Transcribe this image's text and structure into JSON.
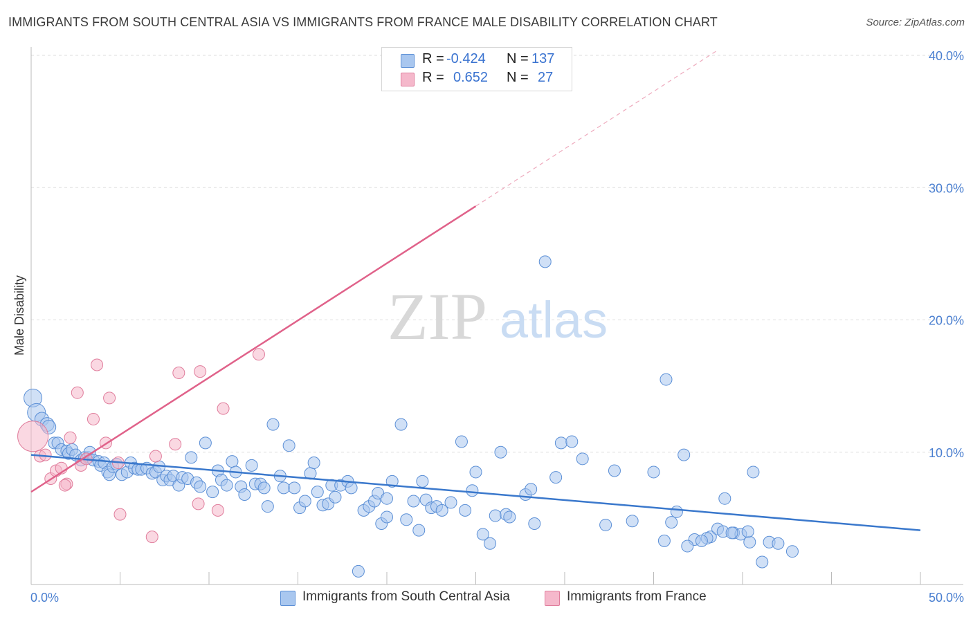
{
  "title": "IMMIGRANTS FROM SOUTH CENTRAL ASIA VS IMMIGRANTS FROM FRANCE MALE DISABILITY CORRELATION CHART",
  "source": "Source: ZipAtlas.com",
  "watermark": {
    "zip": "ZIP",
    "atlas": "atlas"
  },
  "legend": {
    "rows": [
      {
        "r_label": "R =",
        "r_value": "-0.424",
        "n_label": "N =",
        "n_value": "137"
      },
      {
        "r_label": "R =",
        "r_value": "0.652",
        "n_label": "N =",
        "n_value": "27"
      }
    ]
  },
  "bottom_legend": {
    "series_a": "Immigrants from South Central Asia",
    "series_b": "Immigrants from France"
  },
  "colors": {
    "blue_fill": "#a9c7ef",
    "blue_stroke": "#5b8fd6",
    "blue_line": "#3a78cc",
    "pink_fill": "#f5b8cb",
    "pink_stroke": "#e07d9c",
    "pink_line": "#e0628a",
    "tick_text": "#4a7fd0",
    "grid": "#dddddd"
  },
  "chart_data": {
    "type": "scatter",
    "title": "IMMIGRANTS FROM SOUTH CENTRAL ASIA VS IMMIGRANTS FROM FRANCE MALE DISABILITY CORRELATION CHART",
    "xlabel": "",
    "ylabel": "Male Disability",
    "xlim": [
      0,
      50
    ],
    "ylim": [
      0,
      40
    ],
    "x_tick_labels": [
      "0.0%",
      "50.0%"
    ],
    "y_ticks": [
      10,
      20,
      30,
      40
    ],
    "y_tick_labels": [
      "10.0%",
      "20.0%",
      "30.0%",
      "40.0%"
    ],
    "grid": "horizontal dashed",
    "legend_position": "top-center",
    "series": [
      {
        "name": "Immigrants from South Central Asia",
        "color": "#a9c7ef",
        "points": [
          [
            0.1,
            14.1
          ],
          [
            0.3,
            13.0
          ],
          [
            0.6,
            12.5
          ],
          [
            0.9,
            12.1
          ],
          [
            1.0,
            11.9
          ],
          [
            1.3,
            10.7
          ],
          [
            1.5,
            10.7
          ],
          [
            1.7,
            10.2
          ],
          [
            2.0,
            10.1
          ],
          [
            2.1,
            9.9
          ],
          [
            2.3,
            10.2
          ],
          [
            2.5,
            9.8
          ],
          [
            2.8,
            9.4
          ],
          [
            3.0,
            9.6
          ],
          [
            3.2,
            9.6
          ],
          [
            3.3,
            10.0
          ],
          [
            3.5,
            9.4
          ],
          [
            3.8,
            9.3
          ],
          [
            3.9,
            9.0
          ],
          [
            4.1,
            9.2
          ],
          [
            4.3,
            8.5
          ],
          [
            4.4,
            8.3
          ],
          [
            4.6,
            8.9
          ],
          [
            4.8,
            9.1
          ],
          [
            5.1,
            8.3
          ],
          [
            5.4,
            8.5
          ],
          [
            5.6,
            9.2
          ],
          [
            5.8,
            8.8
          ],
          [
            6.0,
            8.7
          ],
          [
            6.2,
            8.7
          ],
          [
            6.5,
            8.8
          ],
          [
            6.8,
            8.4
          ],
          [
            7.0,
            8.5
          ],
          [
            7.2,
            8.9
          ],
          [
            7.4,
            7.9
          ],
          [
            7.6,
            8.2
          ],
          [
            7.8,
            7.9
          ],
          [
            8.0,
            8.2
          ],
          [
            8.3,
            7.5
          ],
          [
            8.5,
            8.1
          ],
          [
            8.8,
            8.0
          ],
          [
            9.0,
            9.6
          ],
          [
            9.3,
            7.7
          ],
          [
            9.5,
            7.4
          ],
          [
            9.8,
            10.7
          ],
          [
            10.2,
            7.0
          ],
          [
            10.5,
            8.6
          ],
          [
            10.7,
            7.9
          ],
          [
            11.0,
            7.5
          ],
          [
            11.3,
            9.3
          ],
          [
            11.5,
            8.5
          ],
          [
            11.8,
            7.4
          ],
          [
            12.0,
            6.8
          ],
          [
            12.4,
            9.0
          ],
          [
            12.6,
            7.6
          ],
          [
            12.9,
            7.6
          ],
          [
            13.1,
            7.3
          ],
          [
            13.3,
            5.9
          ],
          [
            13.6,
            12.1
          ],
          [
            14.0,
            8.2
          ],
          [
            14.2,
            7.3
          ],
          [
            14.5,
            10.5
          ],
          [
            14.8,
            7.3
          ],
          [
            15.1,
            5.8
          ],
          [
            15.4,
            6.3
          ],
          [
            15.7,
            8.4
          ],
          [
            15.9,
            9.2
          ],
          [
            16.1,
            7.0
          ],
          [
            16.4,
            6.0
          ],
          [
            16.7,
            6.1
          ],
          [
            16.9,
            7.5
          ],
          [
            17.1,
            6.6
          ],
          [
            17.4,
            7.5
          ],
          [
            17.8,
            7.8
          ],
          [
            18.0,
            7.3
          ],
          [
            18.4,
            1.0
          ],
          [
            18.7,
            5.6
          ],
          [
            19.0,
            5.9
          ],
          [
            19.3,
            6.3
          ],
          [
            19.5,
            6.9
          ],
          [
            19.7,
            4.6
          ],
          [
            20.0,
            5.1
          ],
          [
            20.3,
            7.8
          ],
          [
            20.0,
            6.5
          ],
          [
            20.8,
            12.1
          ],
          [
            21.1,
            4.9
          ],
          [
            21.5,
            6.3
          ],
          [
            21.8,
            4.1
          ],
          [
            22.0,
            7.8
          ],
          [
            22.2,
            6.4
          ],
          [
            22.5,
            5.8
          ],
          [
            22.8,
            5.9
          ],
          [
            23.1,
            5.6
          ],
          [
            23.6,
            6.2
          ],
          [
            24.2,
            10.8
          ],
          [
            24.4,
            5.6
          ],
          [
            24.8,
            7.1
          ],
          [
            25.0,
            8.5
          ],
          [
            25.4,
            3.8
          ],
          [
            25.8,
            3.1
          ],
          [
            26.1,
            5.2
          ],
          [
            26.4,
            10.0
          ],
          [
            26.7,
            5.3
          ],
          [
            26.9,
            5.1
          ],
          [
            27.8,
            6.8
          ],
          [
            28.1,
            7.2
          ],
          [
            28.3,
            4.6
          ],
          [
            29.5,
            8.1
          ],
          [
            29.8,
            10.7
          ],
          [
            30.4,
            10.8
          ],
          [
            28.9,
            24.4
          ],
          [
            31.0,
            9.5
          ],
          [
            32.3,
            4.5
          ],
          [
            32.8,
            8.6
          ],
          [
            33.8,
            4.8
          ],
          [
            35.0,
            8.5
          ],
          [
            36.0,
            4.7
          ],
          [
            36.3,
            5.5
          ],
          [
            36.7,
            9.8
          ],
          [
            35.6,
            3.3
          ],
          [
            37.3,
            3.4
          ],
          [
            38.2,
            3.6
          ],
          [
            38.6,
            4.2
          ],
          [
            38.9,
            4.0
          ],
          [
            39.5,
            3.9
          ],
          [
            39.9,
            3.8
          ],
          [
            35.7,
            15.5
          ],
          [
            38.0,
            3.5
          ],
          [
            37.7,
            3.3
          ],
          [
            40.4,
            3.2
          ],
          [
            39.0,
            6.5
          ],
          [
            40.6,
            8.5
          ],
          [
            41.5,
            3.2
          ],
          [
            42.0,
            3.1
          ],
          [
            39.4,
            3.9
          ],
          [
            40.3,
            4.0
          ],
          [
            36.9,
            2.9
          ],
          [
            42.8,
            2.5
          ],
          [
            41.1,
            1.7
          ]
        ],
        "trend": {
          "x0": 0,
          "y0": 9.8,
          "x1": 50,
          "y1": 4.1
        }
      },
      {
        "name": "Immigrants from France",
        "color": "#f5b8cb",
        "points": [
          [
            0.1,
            11.2
          ],
          [
            0.5,
            9.7
          ],
          [
            0.8,
            9.8
          ],
          [
            1.1,
            8.0
          ],
          [
            1.4,
            8.6
          ],
          [
            1.7,
            8.8
          ],
          [
            2.0,
            7.6
          ],
          [
            2.2,
            11.1
          ],
          [
            2.6,
            14.5
          ],
          [
            2.8,
            9.0
          ],
          [
            3.1,
            9.5
          ],
          [
            3.5,
            12.5
          ],
          [
            3.7,
            16.6
          ],
          [
            4.2,
            10.7
          ],
          [
            4.4,
            14.1
          ],
          [
            4.9,
            9.2
          ],
          [
            5.0,
            5.3
          ],
          [
            6.8,
            3.6
          ],
          [
            7.0,
            9.7
          ],
          [
            8.1,
            10.6
          ],
          [
            8.3,
            16.0
          ],
          [
            9.4,
            6.1
          ],
          [
            9.5,
            16.1
          ],
          [
            10.5,
            5.6
          ],
          [
            10.8,
            13.3
          ],
          [
            12.8,
            17.4
          ],
          [
            1.9,
            7.5
          ]
        ],
        "trend": {
          "x0": 0,
          "y0": 7.0,
          "x1": 25,
          "y1": 28.6
        },
        "trend_extension": {
          "x0": 25,
          "y0": 28.6,
          "x1": 38.5,
          "y1": 40.3
        }
      }
    ]
  }
}
